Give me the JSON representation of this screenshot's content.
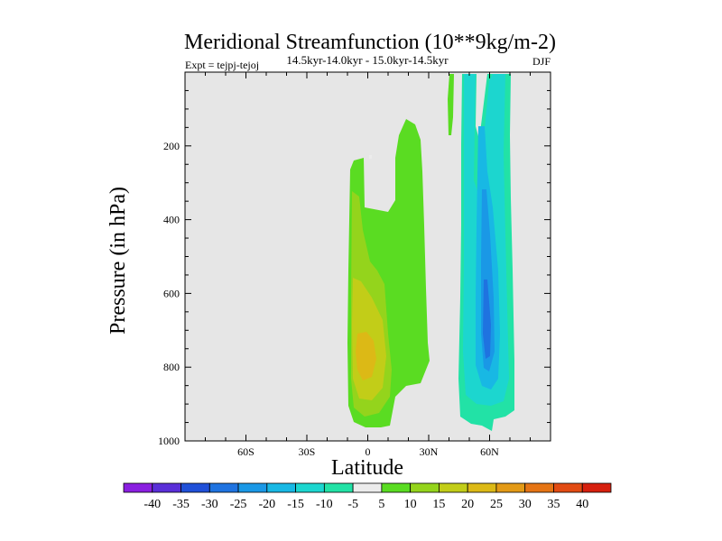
{
  "chart_data": {
    "type": "contour",
    "title": "Meridional Streamfunction (10**9kg/m-2)",
    "subtitle": "14.5kyr-14.0kyr - 15.0kyr-14.5kyr",
    "experiment_label": "Expt = tejpj-tejoj",
    "season": "DJF",
    "xlabel": "Latitude",
    "ylabel": "Pressure (in hPa)",
    "xlim": [
      -90,
      90
    ],
    "ylim": [
      1000,
      0
    ],
    "x_ticks": [
      {
        "value": -60,
        "label": "60S"
      },
      {
        "value": -30,
        "label": "30S"
      },
      {
        "value": 0,
        "label": "0"
      },
      {
        "value": 30,
        "label": "30N"
      },
      {
        "value": 60,
        "label": "60N"
      }
    ],
    "y_ticks": [
      {
        "value": 200,
        "label": "200"
      },
      {
        "value": 400,
        "label": "400"
      },
      {
        "value": 600,
        "label": "600"
      },
      {
        "value": 800,
        "label": "800"
      },
      {
        "value": 1000,
        "label": "1000"
      }
    ],
    "colorbar": {
      "labels": [
        "-40",
        "-35",
        "-30",
        "-25",
        "-20",
        "-15",
        "-10",
        "-5",
        "5",
        "10",
        "15",
        "20",
        "25",
        "30",
        "35",
        "40"
      ],
      "colors": [
        "#8a1fe0",
        "#5a2fd8",
        "#2050d8",
        "#1f73e0",
        "#1a98e6",
        "#18b8e4",
        "#1cd6cf",
        "#22e2a6",
        "#ececec",
        "#5adc22",
        "#94d41c",
        "#c2cd18",
        "#dcb916",
        "#e39a16",
        "#e57414",
        "#e24b12",
        "#d6200e"
      ]
    },
    "features": [
      {
        "name": "positive-cell-equator",
        "lat_range": [
          -10,
          30
        ],
        "p_range": [
          90,
          970
        ],
        "max_level": "20"
      },
      {
        "name": "negative-cell-60N",
        "lat_range": [
          45,
          70
        ],
        "p_range": [
          0,
          980
        ],
        "min_level": "-30"
      }
    ]
  }
}
